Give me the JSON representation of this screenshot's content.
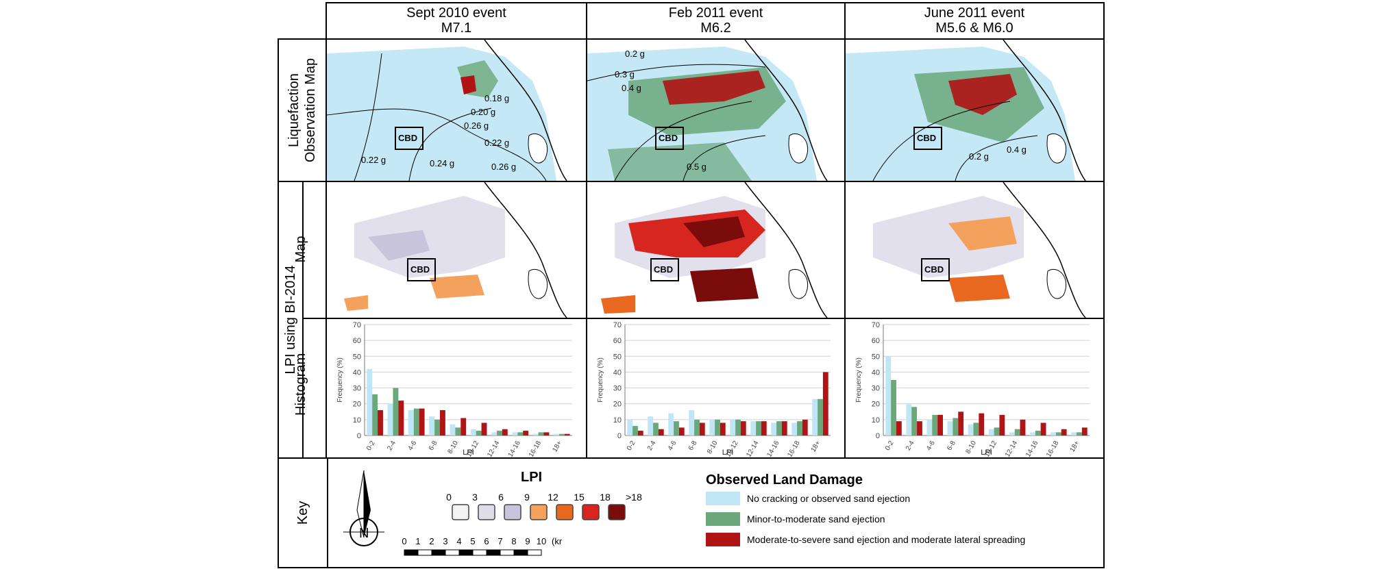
{
  "columns": [
    {
      "title": "Sept 2010 event",
      "subtitle": "M7.1"
    },
    {
      "title": "Feb 2011 event",
      "subtitle": "M6.2"
    },
    {
      "title": "June 2011 event",
      "subtitle": "M5.6 & M6.0"
    }
  ],
  "row_labels": {
    "liquefaction_line1": "Liquefaction",
    "liquefaction_line2": "Observation Map",
    "lpi_group": "LPI using BI-2014",
    "map": "Map",
    "histogram": "Histogram",
    "key": "Key"
  },
  "cbd_label": "CBD",
  "contour_labels": {
    "sept": [
      "0.26 g",
      "0.22 g",
      "0.24 g",
      "0.26 g",
      "0.20 g",
      "0.18 g",
      "0.22 g"
    ],
    "feb": [
      "0.2 g",
      "0.3 g",
      "0.4 g",
      "0.5 g"
    ],
    "june": [
      "0.2 g",
      "0.4 g"
    ]
  },
  "chart_data": [
    {
      "type": "bar",
      "title": "",
      "xlabel": "LPI",
      "ylabel": "Frequency (%)",
      "ylim": [
        0,
        70
      ],
      "yticks": [
        "0",
        "10",
        "20",
        "30",
        "40",
        "50",
        "60",
        "70"
      ],
      "categories": [
        "0-2",
        "2-4",
        "4-6",
        "6-8",
        "8-10",
        "10-12",
        "12-14",
        "14-16",
        "16-18",
        "18+"
      ],
      "series": [
        {
          "values": [
            42,
            20,
            16,
            12,
            7,
            4,
            2,
            2,
            1,
            1
          ],
          "color": "#bfe6f5"
        },
        {
          "values": [
            26,
            30,
            17,
            10,
            5,
            3,
            3,
            2,
            2,
            1
          ],
          "color": "#6aa77a"
        },
        {
          "values": [
            16,
            22,
            17,
            16,
            11,
            8,
            4,
            3,
            2,
            1
          ],
          "color": "#b01414"
        }
      ]
    },
    {
      "type": "bar",
      "title": "",
      "xlabel": "LPI",
      "ylabel": "Frequency (%)",
      "ylim": [
        0,
        70
      ],
      "yticks": [
        "0",
        "10",
        "20",
        "30",
        "40",
        "50",
        "60",
        "70"
      ],
      "categories": [
        "0-2",
        "2-4",
        "4-6",
        "6-8",
        "8-10",
        "10-12",
        "12-14",
        "14-16",
        "16-18",
        "18+"
      ],
      "series": [
        {
          "values": [
            10,
            12,
            14,
            16,
            10,
            10,
            9,
            8,
            8,
            23
          ],
          "color": "#bfe6f5"
        },
        {
          "values": [
            6,
            8,
            9,
            10,
            10,
            10,
            9,
            9,
            9,
            23
          ],
          "color": "#6aa77a"
        },
        {
          "values": [
            3,
            4,
            5,
            8,
            8,
            9,
            9,
            9,
            10,
            40
          ],
          "color": "#b01414"
        }
      ]
    },
    {
      "type": "bar",
      "title": "",
      "xlabel": "LPI",
      "ylabel": "Frequency (%)",
      "ylim": [
        0,
        70
      ],
      "yticks": [
        "0",
        "10",
        "20",
        "30",
        "40",
        "50",
        "60",
        "70"
      ],
      "categories": [
        "0-2",
        "2-4",
        "4-6",
        "6-8",
        "8-10",
        "10-12",
        "12-14",
        "14-16",
        "16-18",
        "18+"
      ],
      "series": [
        {
          "values": [
            50,
            20,
            10,
            9,
            7,
            4,
            2,
            2,
            2,
            2
          ],
          "color": "#bfe6f5"
        },
        {
          "values": [
            35,
            18,
            13,
            11,
            8,
            5,
            4,
            3,
            2,
            2
          ],
          "color": "#6aa77a"
        },
        {
          "values": [
            9,
            9,
            13,
            15,
            14,
            13,
            10,
            8,
            4,
            5
          ],
          "color": "#b01414"
        }
      ]
    }
  ],
  "key": {
    "lpi_title": "LPI",
    "lpi_ticks": [
      "0",
      "3",
      "6",
      "9",
      "12",
      "15",
      "18",
      ">18"
    ],
    "lpi_colors": [
      "#f4f4f6",
      "#e0ddea",
      "#c8c4dc",
      "#f5a15e",
      "#e8681f",
      "#d6261f",
      "#7a0c0c"
    ],
    "scale_ticks": [
      "0",
      "1",
      "2",
      "3",
      "4",
      "5",
      "6",
      "7",
      "8",
      "9",
      "10",
      "(km)"
    ],
    "north_label": "N",
    "damage_title": "Observed Land Damage",
    "damage_items": [
      {
        "label": "No cracking or observed sand ejection",
        "color": "#bfe6f5"
      },
      {
        "label": "Minor-to-moderate sand ejection",
        "color": "#6aa77a"
      },
      {
        "label": "Moderate-to-severe sand ejection and moderate lateral spreading",
        "color": "#b01414"
      }
    ]
  }
}
